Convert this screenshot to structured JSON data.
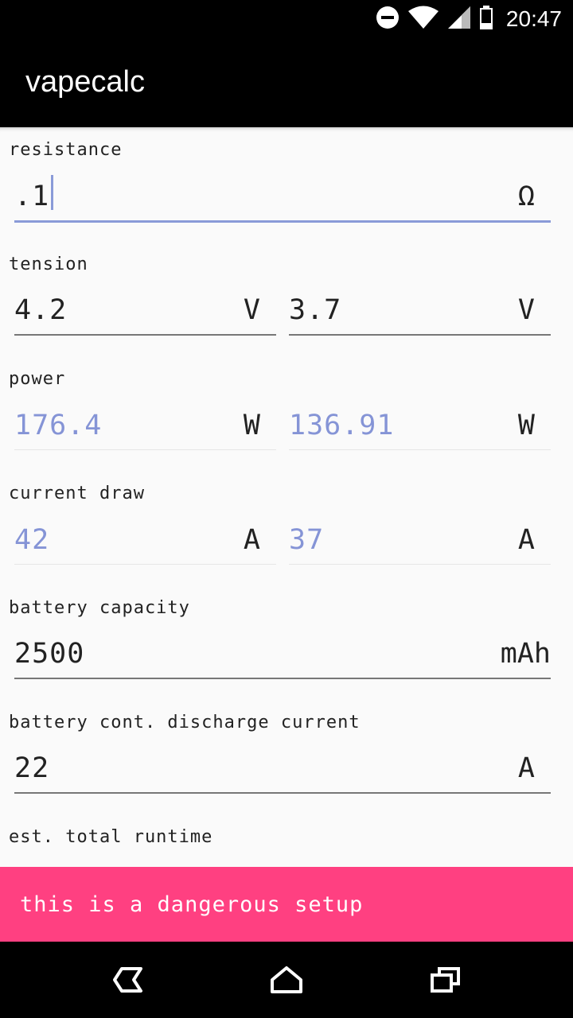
{
  "status_bar": {
    "time": "20:47",
    "icons": [
      "do-not-disturb-icon",
      "wifi-icon",
      "signal-icon",
      "battery-icon"
    ]
  },
  "app_bar": {
    "title": "vapecalc"
  },
  "resistance": {
    "label": "resistance",
    "value": ".1",
    "unit": "Ω"
  },
  "tension": {
    "label": "tension",
    "max": {
      "value": "4.2",
      "unit": "V"
    },
    "min": {
      "value": "3.7",
      "unit": "V"
    }
  },
  "power": {
    "label": "power",
    "max": {
      "value": "176.4",
      "unit": "W"
    },
    "min": {
      "value": "136.91",
      "unit": "W"
    }
  },
  "current_draw": {
    "label": "current draw",
    "max": {
      "value": "42",
      "unit": "A"
    },
    "min": {
      "value": "37",
      "unit": "A"
    }
  },
  "battery_capacity": {
    "label": "battery capacity",
    "value": "2500",
    "unit": "mAh"
  },
  "battery_discharge": {
    "label": "battery cont. discharge current",
    "value": "22",
    "unit": "A"
  },
  "runtime": {
    "label": "est. total runtime"
  },
  "snackbar": {
    "message": "this is a dangerous setup"
  },
  "nav_bar": {
    "icons": [
      "back-icon",
      "home-icon",
      "recents-icon"
    ]
  },
  "colors": {
    "accent": "#8a9bd8",
    "snackbar": "#ff4081",
    "computed_value": "#8594d6"
  }
}
